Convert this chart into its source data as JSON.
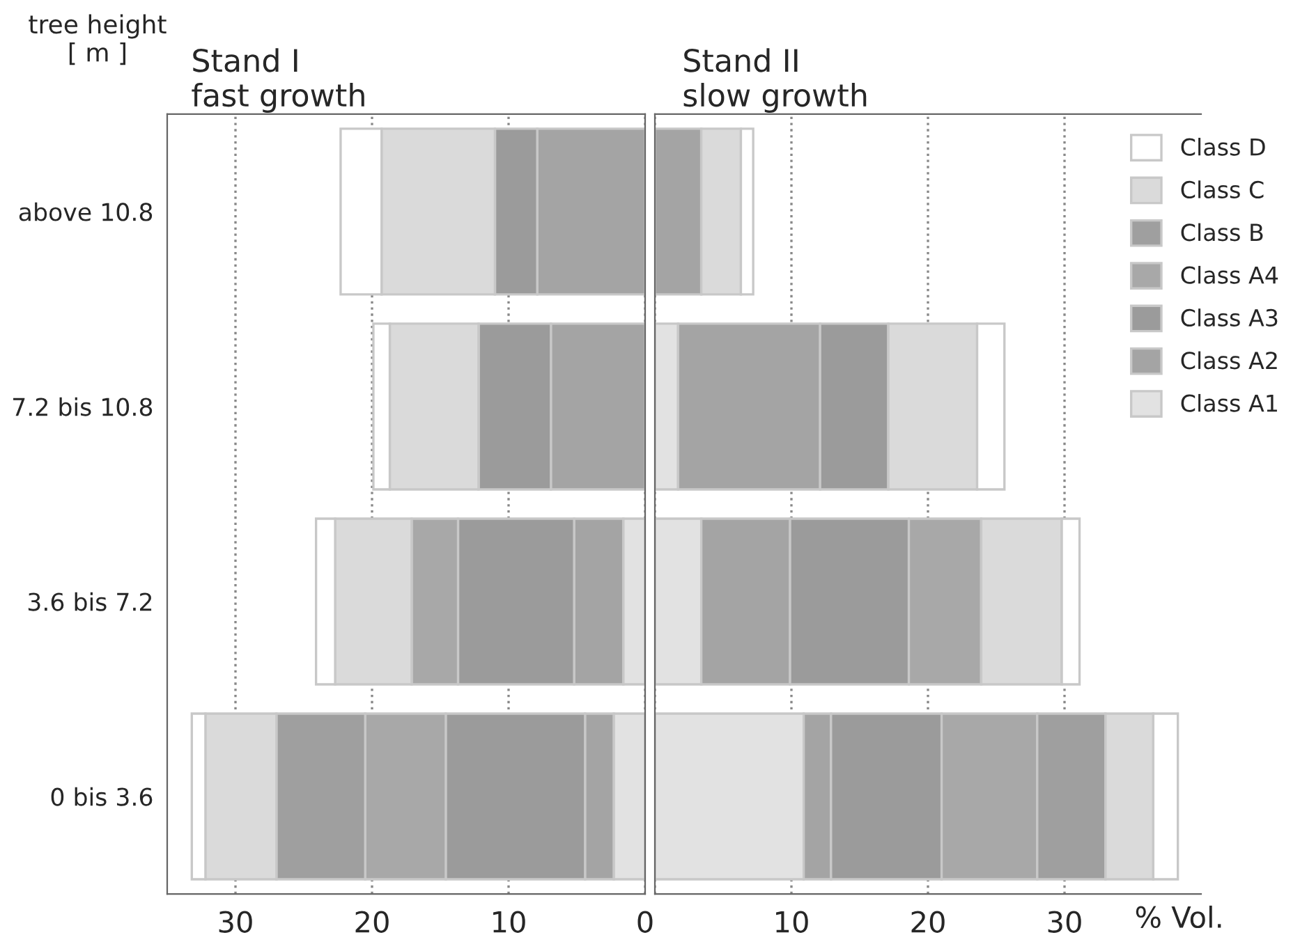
{
  "chart_data": [
    {
      "type": "bar",
      "orientation": "horizontal",
      "stacked": true,
      "title": "Stand I\nfast growth",
      "ylabel": "tree height\n[ m ]",
      "categories": [
        "above 10.8",
        "7.2 bis 10.8",
        "3.6 bis 7.2",
        "0 bis 3.6"
      ],
      "xlim": [
        35,
        0
      ],
      "xticks": [
        30,
        20,
        10,
        0
      ],
      "grid": "x",
      "legend": false,
      "series": [
        {
          "color": "#e2e2e2",
          "values": [
            0,
            0,
            1.6,
            2.3
          ]
        },
        {
          "color": "#a4a4a4",
          "values": [
            7.9,
            6.9,
            3.6,
            2.1
          ]
        },
        {
          "color": "#9b9b9b",
          "values": [
            3.1,
            5.3,
            8.5,
            10.2
          ]
        },
        {
          "color": "#a8a8a8",
          "values": [
            0,
            0,
            3.4,
            5.9
          ]
        },
        {
          "color": "#9f9f9f",
          "values": [
            0,
            0,
            0,
            6.5
          ]
        },
        {
          "color": "#dadada",
          "values": [
            8.3,
            6.5,
            5.6,
            5.2
          ]
        },
        {
          "color": "#ffffff",
          "values": [
            3.0,
            1.2,
            1.4,
            1.0
          ]
        }
      ]
    },
    {
      "type": "bar",
      "orientation": "horizontal",
      "stacked": true,
      "title": "Stand II\nslow growth",
      "xlabel": "% Vol.",
      "categories": [
        null,
        null,
        null,
        null
      ],
      "xlim": [
        0,
        40
      ],
      "xticks": [
        {
          "value": 0,
          "label": null
        },
        10,
        20,
        30
      ],
      "grid": "x",
      "legend": "top right",
      "tick_labels": "x",
      "series": [
        {
          "name": "Class A1",
          "color": "#e2e2e2",
          "values": [
            0,
            1.7,
            3.4,
            10.9
          ]
        },
        {
          "name": "Class A2",
          "color": "#a4a4a4",
          "values": [
            3.4,
            10.4,
            6.5,
            2.0
          ]
        },
        {
          "name": "Class A3",
          "color": "#9b9b9b",
          "values": [
            0,
            5.0,
            8.7,
            8.1
          ]
        },
        {
          "name": "Class A4",
          "color": "#a8a8a8",
          "values": [
            0,
            0,
            5.3,
            7.0
          ]
        },
        {
          "name": "Class B",
          "color": "#9f9f9f",
          "values": [
            0,
            0,
            0,
            5.0
          ]
        },
        {
          "name": "Class C",
          "color": "#dadada",
          "values": [
            2.9,
            6.5,
            5.9,
            3.5
          ]
        },
        {
          "name": "Class D",
          "color": "#ffffff",
          "values": [
            0.9,
            2.0,
            1.3,
            1.8
          ]
        }
      ]
    }
  ]
}
